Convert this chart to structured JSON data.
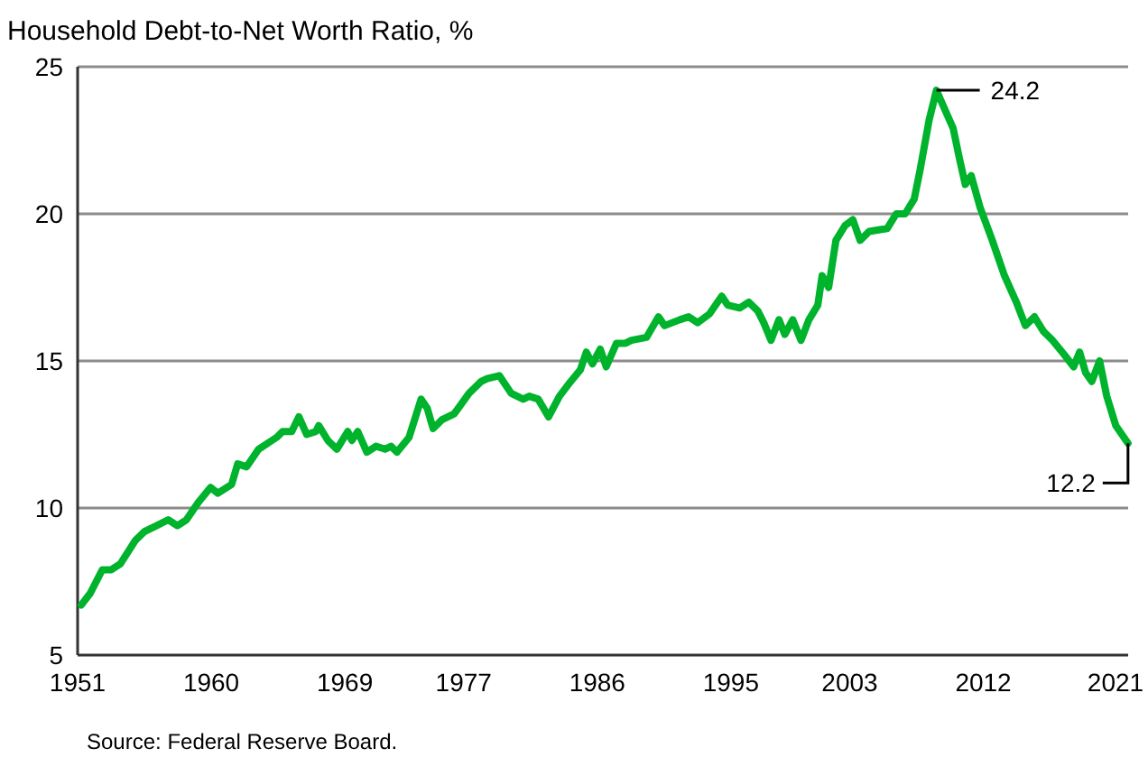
{
  "chart_data": {
    "type": "line",
    "title": "Household Debt-to-Net Worth Ratio, %",
    "x": [
      1951.24,
      1951.85,
      1952.66,
      1953.27,
      1953.88,
      1954.89,
      1955.5,
      1956.31,
      1957.11,
      1957.72,
      1958.33,
      1959.14,
      1959.95,
      1960.44,
      1961.37,
      1961.78,
      1962.38,
      1963.19,
      1964.4,
      1964.81,
      1965.42,
      1965.9,
      1966.43,
      1967.04,
      1967.24,
      1967.85,
      1968.46,
      1969.19,
      1969.47,
      1969.87,
      1970.48,
      1971.09,
      1971.7,
      1972.11,
      1972.51,
      1973.32,
      1974.13,
      1974.54,
      1974.94,
      1975.54,
      1976.36,
      1977.36,
      1978.17,
      1978.58,
      1979.4,
      1980.2,
      1981.01,
      1981.42,
      1982.02,
      1982.72,
      1983.45,
      1984.05,
      1984.86,
      1985.26,
      1985.67,
      1986.2,
      1986.6,
      1987.29,
      1987.9,
      1988.3,
      1989.31,
      1990.12,
      1990.53,
      1991.55,
      1992.15,
      1992.76,
      1993.56,
      1994.38,
      1994.78,
      1995.59,
      1996.2,
      1996.81,
      1997.21,
      1997.7,
      1998.23,
      1998.63,
      1999.16,
      1999.72,
      2000.25,
      2000.85,
      2001.14,
      2001.58,
      2002.07,
      2002.68,
      2003.21,
      2003.7,
      2004.3,
      2005.52,
      2006.13,
      2006.73,
      2007.34,
      2007.74,
      2008.35,
      2008.84,
      2009.36,
      2009.97,
      2010.38,
      2010.78,
      2011.18,
      2011.79,
      2012.6,
      2013.42,
      2014.22,
      2014.83,
      2015.44,
      2016.05,
      2016.66,
      2017.47,
      2018.08,
      2018.48,
      2018.89,
      2019.3,
      2019.83,
      2020.31,
      2020.92,
      2021.74
    ],
    "series": [
      {
        "color": "#00b32c",
        "values": [
          6.7,
          7.1,
          7.9,
          7.9,
          8.1,
          8.9,
          9.2,
          9.4,
          9.6,
          9.4,
          9.6,
          10.2,
          10.7,
          10.5,
          10.8,
          11.5,
          11.4,
          12.0,
          12.4,
          12.6,
          12.6,
          13.1,
          12.5,
          12.6,
          12.8,
          12.3,
          12.0,
          12.6,
          12.3,
          12.6,
          11.9,
          12.1,
          12.0,
          12.1,
          11.9,
          12.4,
          13.7,
          13.4,
          12.7,
          13.0,
          13.2,
          13.9,
          14.3,
          14.4,
          14.5,
          13.9,
          13.7,
          13.8,
          13.7,
          13.1,
          13.8,
          14.2,
          14.7,
          15.3,
          14.9,
          15.4,
          14.8,
          15.6,
          15.6,
          15.7,
          15.8,
          16.5,
          16.2,
          16.4,
          16.5,
          16.3,
          16.6,
          17.2,
          16.9,
          16.8,
          17.0,
          16.7,
          16.3,
          15.7,
          16.4,
          15.9,
          16.4,
          15.7,
          16.4,
          16.9,
          17.9,
          17.5,
          19.1,
          19.6,
          19.8,
          19.1,
          19.4,
          19.5,
          20.0,
          20.0,
          20.5,
          21.5,
          23.2,
          24.2,
          23.6,
          22.9,
          21.9,
          21.0,
          21.3,
          20.2,
          19.1,
          17.9,
          17.0,
          16.2,
          16.5,
          16.0,
          15.7,
          15.2,
          14.8,
          15.3,
          14.6,
          14.3,
          15.0,
          13.8,
          12.8,
          12.2
        ]
      }
    ],
    "xlim": [
      1951,
      2021.75
    ],
    "xticks": [
      1951,
      1960,
      1969,
      1977,
      1986,
      1995,
      2003,
      2012,
      2021
    ],
    "ylim": [
      5,
      25
    ],
    "yticks": [
      5,
      10,
      15,
      20,
      25
    ],
    "grid": "y",
    "line_style": "solid",
    "annotations": [
      {
        "text": "24.2",
        "x": 2008.84,
        "y": 24.2
      },
      {
        "text": "12.2",
        "x": 2021.74,
        "y": 12.2
      },
      "Source: Federal Reserve Board."
    ]
  }
}
